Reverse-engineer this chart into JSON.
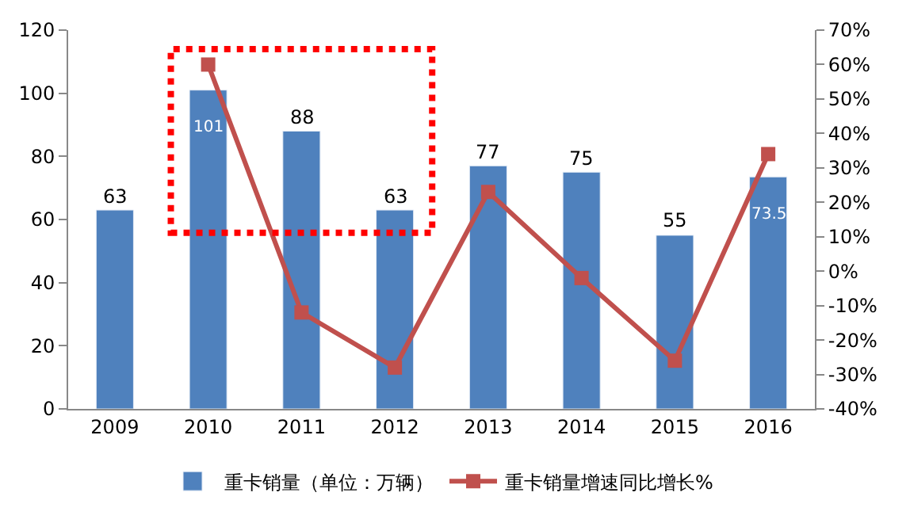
{
  "chart_data": {
    "type": "bar",
    "categories": [
      "2009",
      "2010",
      "2011",
      "2012",
      "2013",
      "2014",
      "2015",
      "2016"
    ],
    "series": [
      {
        "name": "重卡销量（单位：万辆）",
        "color": "#4f81bd",
        "values": [
          63,
          101,
          88,
          63,
          77,
          75,
          55,
          73.5
        ],
        "data_labels": true
      },
      {
        "name": "重卡销量增速同比增长%",
        "type": "line",
        "axis": "y2",
        "color": "#c0504d",
        "marker": "square",
        "values": [
          null,
          60,
          -12,
          -28,
          23,
          -2,
          -26,
          34
        ]
      }
    ],
    "ylim": [
      0,
      120
    ],
    "yticks": [
      0,
      20,
      40,
      60,
      80,
      100,
      120
    ],
    "y2lim": [
      -40,
      70
    ],
    "y2ticks": [
      {
        "value": -40,
        "label": "-40%"
      },
      {
        "value": -30,
        "label": "-30%"
      },
      {
        "value": -20,
        "label": "-20%"
      },
      {
        "value": -10,
        "label": "-10%"
      },
      {
        "value": 0,
        "label": "0%"
      },
      {
        "value": 10,
        "label": "10%"
      },
      {
        "value": 20,
        "label": "20%"
      },
      {
        "value": 30,
        "label": "30%"
      },
      {
        "value": 40,
        "label": "40%"
      },
      {
        "value": 50,
        "label": "50%"
      },
      {
        "value": 60,
        "label": "60%"
      },
      {
        "value": 70,
        "label": "70%"
      }
    ],
    "legend": "bottom"
  }
}
